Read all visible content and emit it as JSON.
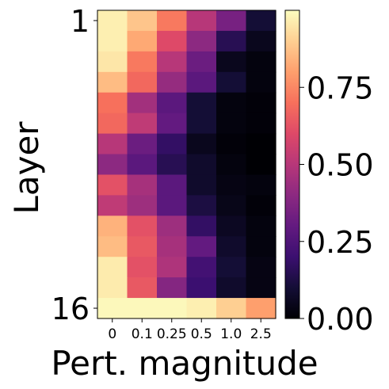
{
  "chart_data": {
    "type": "heatmap",
    "xlabel": "Pert. magnitude",
    "ylabel": "Layer",
    "x_categories": [
      "0",
      "0.1",
      "0.25",
      "0.5",
      "1.0",
      "2.5"
    ],
    "y_tick_labels": {
      "first": "1",
      "last": "16"
    },
    "y_range": [
      1,
      16
    ],
    "colormap": "magma",
    "colorbar": {
      "vmin": 0.0,
      "vmax": 1.0,
      "ticks": [
        0.0,
        0.25,
        0.5,
        0.75
      ],
      "tick_labels": [
        "0.00",
        "0.25",
        "0.50",
        "0.75"
      ],
      "position": "right"
    },
    "grid": false,
    "values": [
      [
        0.97,
        0.88,
        0.72,
        0.5,
        0.35,
        0.1
      ],
      [
        0.97,
        0.82,
        0.6,
        0.4,
        0.15,
        0.05
      ],
      [
        0.95,
        0.72,
        0.5,
        0.32,
        0.05,
        0.02
      ],
      [
        0.86,
        0.68,
        0.42,
        0.28,
        0.1,
        0.02
      ],
      [
        0.7,
        0.45,
        0.28,
        0.1,
        0.02,
        0.01
      ],
      [
        0.68,
        0.52,
        0.3,
        0.1,
        0.02,
        0.01
      ],
      [
        0.5,
        0.32,
        0.18,
        0.05,
        0.01,
        0.0
      ],
      [
        0.4,
        0.28,
        0.15,
        0.08,
        0.02,
        0.0
      ],
      [
        0.62,
        0.46,
        0.28,
        0.08,
        0.03,
        0.02
      ],
      [
        0.52,
        0.44,
        0.28,
        0.12,
        0.04,
        0.01
      ],
      [
        0.84,
        0.62,
        0.44,
        0.18,
        0.06,
        0.02
      ],
      [
        0.86,
        0.64,
        0.46,
        0.3,
        0.08,
        0.02
      ],
      [
        0.96,
        0.62,
        0.48,
        0.22,
        0.1,
        0.03
      ],
      [
        0.96,
        0.64,
        0.38,
        0.2,
        0.08,
        0.03
      ],
      [
        0.99,
        0.99,
        0.99,
        0.97,
        0.9,
        0.8
      ]
    ]
  }
}
